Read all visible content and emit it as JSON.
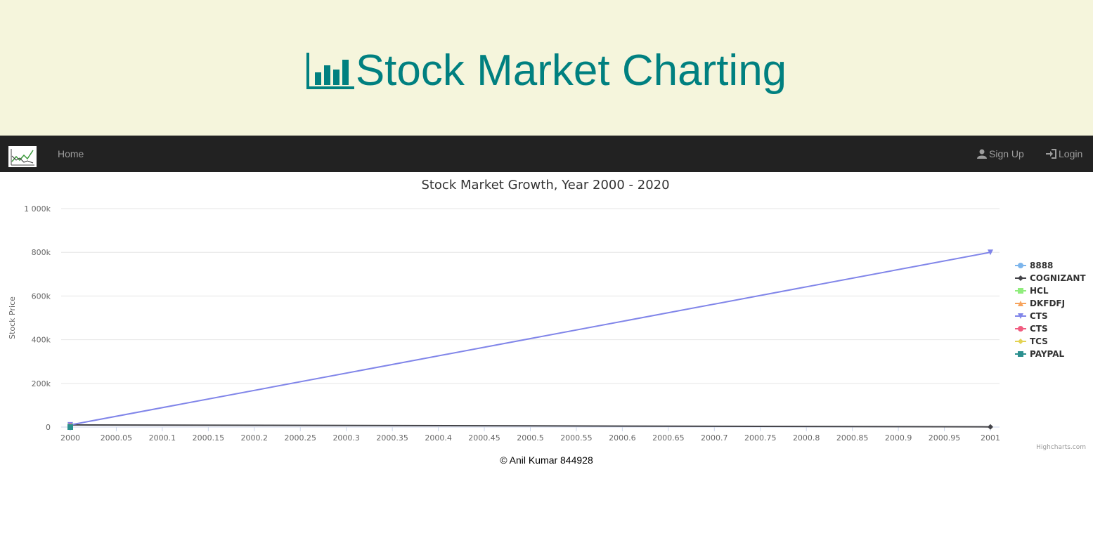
{
  "header": {
    "title": "Stock Market Charting",
    "title_color": "#008080",
    "background": "#f5f5dc",
    "icon": "bar-chart-icon"
  },
  "navbar": {
    "background": "#222222",
    "logo_icon": "stock-chart-logo-icon",
    "home_label": "Home",
    "signup_label": "Sign Up",
    "login_label": "Login"
  },
  "chart_data": {
    "type": "line",
    "title": "Stock Market Growth, Year 2000 - 2020",
    "ylabel": "Stock Price",
    "xlabel": "",
    "xlim": [
      2000,
      2001
    ],
    "ylim": [
      0,
      1000000
    ],
    "x_ticks": [
      "2000",
      "2000.05",
      "2000.1",
      "2000.15",
      "2000.2",
      "2000.25",
      "2000.3",
      "2000.35",
      "2000.4",
      "2000.45",
      "2000.5",
      "2000.55",
      "2000.6",
      "2000.65",
      "2000.7",
      "2000.75",
      "2000.8",
      "2000.85",
      "2000.9",
      "2000.95",
      "2001"
    ],
    "y_ticks": [
      "0",
      "200k",
      "400k",
      "600k",
      "800k",
      "1 000k"
    ],
    "grid": true,
    "legend_position": "right",
    "credits": "Highcharts.com",
    "series": [
      {
        "name": "8888",
        "color": "#7cb5ec",
        "marker": "circle",
        "points": [
          [
            2000,
            8000
          ]
        ]
      },
      {
        "name": "COGNIZANT",
        "color": "#434348",
        "marker": "diamond",
        "points": [
          [
            2000,
            10000
          ],
          [
            2001,
            1000
          ]
        ]
      },
      {
        "name": "HCL",
        "color": "#90ed7d",
        "marker": "square",
        "points": [
          [
            2000,
            5000
          ]
        ]
      },
      {
        "name": "DKFDFJ",
        "color": "#f7a35c",
        "marker": "triangle",
        "points": [
          [
            2000,
            6000
          ]
        ]
      },
      {
        "name": "CTS",
        "color": "#8085e9",
        "marker": "triangle-down",
        "points": [
          [
            2000,
            10000
          ],
          [
            2001,
            800000
          ]
        ]
      },
      {
        "name": "CTS",
        "color": "#f15c80",
        "marker": "circle",
        "points": [
          [
            2000,
            4000
          ]
        ]
      },
      {
        "name": "TCS",
        "color": "#e4d354",
        "marker": "diamond",
        "points": [
          [
            2000,
            3000
          ]
        ]
      },
      {
        "name": "PAYPAL",
        "color": "#2b908f",
        "marker": "square",
        "points": [
          [
            2000,
            0
          ]
        ]
      }
    ]
  },
  "footer": {
    "text": "© Anil Kumar 844928"
  }
}
